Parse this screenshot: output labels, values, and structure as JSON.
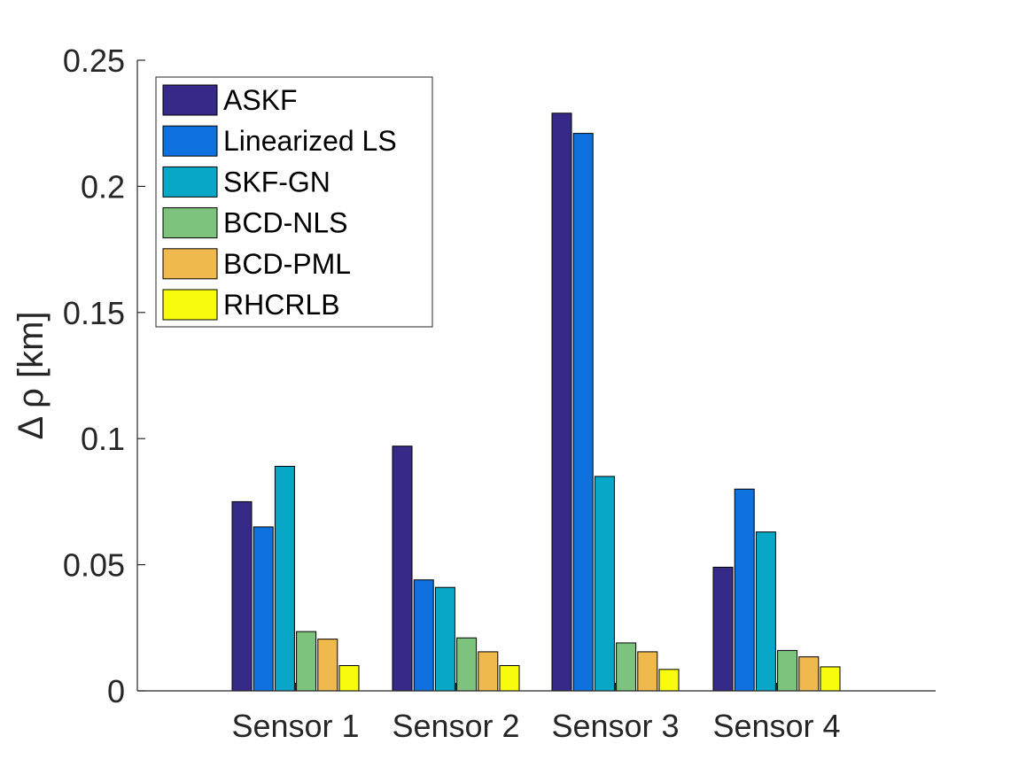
{
  "chart_data": {
    "type": "bar",
    "title": "",
    "xlabel": "",
    "ylabel": "Δ ρ [km]",
    "ylim": [
      0,
      0.25
    ],
    "yticks": [
      0,
      0.05,
      0.1,
      0.15,
      0.2,
      0.25
    ],
    "ytick_labels": [
      "0",
      "0.05",
      "0.1",
      "0.15",
      "0.2",
      "0.25"
    ],
    "categories": [
      "Sensor 1",
      "Sensor 2",
      "Sensor 3",
      "Sensor 4"
    ],
    "legend_position": "top-left",
    "series": [
      {
        "name": "ASKF",
        "color": "#352a87",
        "values": [
          0.075,
          0.097,
          0.229,
          0.049
        ]
      },
      {
        "name": "Linearized LS",
        "color": "#0f71dd",
        "values": [
          0.065,
          0.044,
          0.221,
          0.08
        ]
      },
      {
        "name": "SKF-GN",
        "color": "#09a7c7",
        "values": [
          0.089,
          0.041,
          0.085,
          0.063
        ]
      },
      {
        "name": "BCD-NLS",
        "color": "#7dc27d",
        "values": [
          0.0235,
          0.021,
          0.019,
          0.016
        ]
      },
      {
        "name": "BCD-PML",
        "color": "#f0b94e",
        "values": [
          0.0205,
          0.0155,
          0.0155,
          0.0135
        ]
      },
      {
        "name": "RHCRLB",
        "color": "#f9fb0f",
        "values": [
          0.01,
          0.01,
          0.0085,
          0.0095
        ]
      }
    ]
  }
}
